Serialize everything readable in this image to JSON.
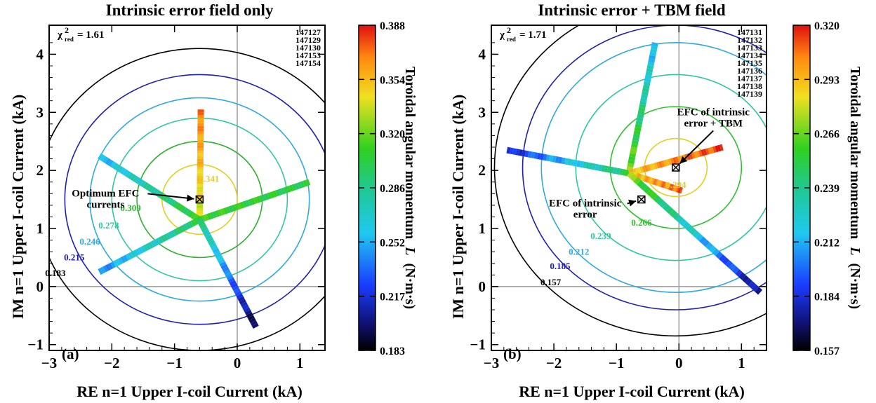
{
  "chart_data": [
    {
      "type": "scatter",
      "title": "Intrinsic error field only",
      "xlabel": "RE n=1 Upper I-coil Current (kA)",
      "ylabel": "IM n=1 Upper I-coil Current (kA)",
      "xlim": [
        -3,
        1.4
      ],
      "ylim": [
        -1.1,
        4.5
      ],
      "xticks": [
        "−3",
        "−2",
        "−1",
        "0",
        "1"
      ],
      "yticks": [
        "−1",
        "0",
        "1",
        "2",
        "3",
        "4"
      ],
      "panel_label": "(a)",
      "chi_label": "χ",
      "chi_sup": "2",
      "chi_sub": "red",
      "chi_value": "= 1.61",
      "shots": [
        "147127",
        "147129",
        "147130",
        "147153",
        "147154"
      ],
      "colorbar": {
        "label_text": "Toroidal angular momentum",
        "label_symbol": "L",
        "label_unit": "(N·m·s)",
        "ticks": [
          "0.388",
          "0.354",
          "0.320",
          "0.286",
          "0.252",
          "0.217",
          "0.183"
        ]
      },
      "center": [
        -0.6,
        1.5
      ],
      "contours": [
        {
          "r": 0.6,
          "label": "0.341",
          "color": "#e0d020",
          "lx": -0.45,
          "ly": 1.8
        },
        {
          "r": 1.0,
          "label": "0.309",
          "color": "#30b030",
          "lx": -1.7,
          "ly": 1.3
        },
        {
          "r": 1.4,
          "label": "0.278",
          "color": "#30c8a0",
          "lx": -2.05,
          "ly": 1.0
        },
        {
          "r": 1.75,
          "label": "0.246",
          "color": "#30a8e0",
          "lx": -2.35,
          "ly": 0.72
        },
        {
          "r": 2.15,
          "label": "0.215",
          "color": "#2020b0",
          "lx": -2.6,
          "ly": 0.45
        },
        {
          "r": 2.6,
          "label": "0.183",
          "color": "#000000",
          "lx": -2.9,
          "ly": 0.18
        }
      ],
      "annotations": [
        {
          "lines": [
            "Optimum EFC",
            "currents"
          ],
          "x": -2.1,
          "y": 1.55
        }
      ],
      "marker": [
        -0.6,
        1.5
      ],
      "strokes": [
        {
          "from": [
            -0.6,
            1.15
          ],
          "to": [
            -0.58,
            3.05
          ],
          "cmid": 0.335,
          "cend": 0.37
        },
        {
          "from": [
            -0.6,
            1.15
          ],
          "to": [
            -2.2,
            2.25
          ],
          "cmid": 0.31,
          "cend": 0.25
        },
        {
          "from": [
            -0.6,
            1.15
          ],
          "to": [
            1.15,
            1.8
          ],
          "cmid": 0.31,
          "cend": 0.3
        },
        {
          "from": [
            -0.6,
            1.15
          ],
          "to": [
            -2.2,
            0.25
          ],
          "cmid": 0.3,
          "cend": 0.24
        },
        {
          "from": [
            -0.6,
            1.15
          ],
          "to": [
            0.3,
            -0.7
          ],
          "cmid": 0.29,
          "cend": 0.19
        }
      ],
      "crange": [
        0.183,
        0.388
      ]
    },
    {
      "type": "scatter",
      "title": "Intrinsic error + TBM field",
      "xlabel": "RE n=1 Upper I-coil Current (kA)",
      "ylabel": "IM n=1 Upper I-coil Current (kA)",
      "xlim": [
        -3,
        1.4
      ],
      "ylim": [
        -1.1,
        4.5
      ],
      "xticks": [
        "−3",
        "−2",
        "−1",
        "0",
        "1"
      ],
      "yticks": [
        "−1",
        "0",
        "1",
        "2",
        "3",
        "4"
      ],
      "panel_label": "(b)",
      "chi_label": "χ",
      "chi_sup": "2",
      "chi_sub": "red",
      "chi_value": "= 1.71",
      "shots": [
        "147131",
        "147132",
        "147133",
        "147134",
        "147135",
        "147136",
        "147137",
        "147138",
        "147139"
      ],
      "colorbar": {
        "label_text": "Toroidal angular momentum",
        "label_symbol": "L",
        "label_unit": "(N·m·s)",
        "ticks": [
          "0.320",
          "0.293",
          "0.266",
          "0.239",
          "0.212",
          "0.184",
          "0.157"
        ]
      },
      "center": [
        -0.05,
        2.05
      ],
      "contours": [
        {
          "r": 0.5,
          "label": "0.294",
          "color": "#e0d020",
          "lx": -0.05,
          "ly": 1.7
        },
        {
          "r": 1.05,
          "label": "0.266",
          "color": "#30c030",
          "lx": -0.6,
          "ly": 1.05
        },
        {
          "r": 1.6,
          "label": "0.239",
          "color": "#30c8a0",
          "lx": -1.25,
          "ly": 0.82
        },
        {
          "r": 2.15,
          "label": "0.212",
          "color": "#30a8e0",
          "lx": -1.6,
          "ly": 0.55
        },
        {
          "r": 2.45,
          "label": "0.185",
          "color": "#2020b0",
          "lx": -1.9,
          "ly": 0.3
        },
        {
          "r": 2.9,
          "label": "0.157",
          "color": "#000000",
          "lx": -2.05,
          "ly": 0.02
        }
      ],
      "annotations": [
        {
          "lines": [
            "EFC of intrinsic",
            "error + TBM"
          ],
          "x": 0.55,
          "y": 2.95
        },
        {
          "lines": [
            "EFC of intrinsic",
            "error"
          ],
          "x": -1.5,
          "y": 1.38
        }
      ],
      "marker": [
        -0.05,
        2.05
      ],
      "marker2": [
        -0.6,
        1.5
      ],
      "strokes": [
        {
          "from": [
            -0.8,
            1.95
          ],
          "to": [
            -0.38,
            4.2
          ],
          "cmid": 0.27,
          "cend": 0.21
        },
        {
          "from": [
            -0.8,
            1.95
          ],
          "to": [
            -2.75,
            2.35
          ],
          "cmid": 0.25,
          "cend": 0.18
        },
        {
          "from": [
            -0.8,
            1.95
          ],
          "to": [
            0.7,
            2.4
          ],
          "cmid": 0.29,
          "cend": 0.315
        },
        {
          "from": [
            -0.8,
            1.95
          ],
          "to": [
            0.05,
            1.65
          ],
          "cmid": 0.29,
          "cend": 0.31
        },
        {
          "from": [
            -0.8,
            1.95
          ],
          "to": [
            1.3,
            -0.1
          ],
          "cmid": 0.27,
          "cend": 0.17
        }
      ],
      "crange": [
        0.157,
        0.32
      ]
    }
  ]
}
